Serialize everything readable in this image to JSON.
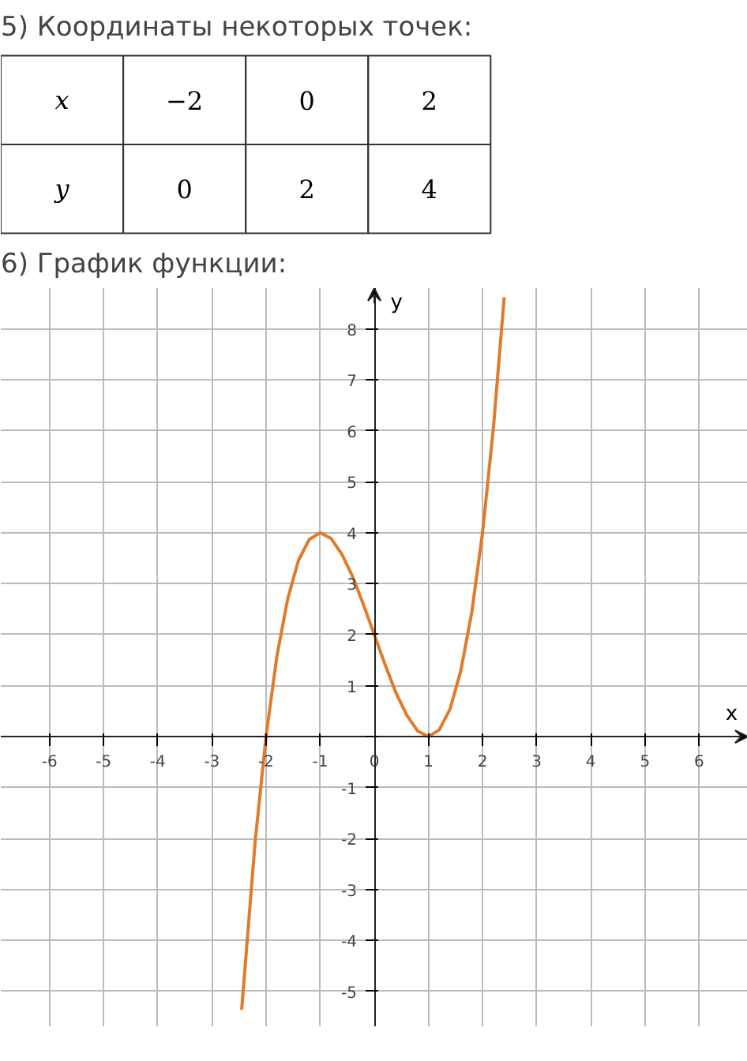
{
  "chart_data": [
    {
      "type": "other",
      "title": "5) Координаты некоторых точек:",
      "annotations": [
        "x",
        "−2",
        "0",
        "2",
        "y",
        "0",
        "2",
        "4"
      ]
    },
    {
      "type": "line",
      "title": "6) График функции:",
      "xlabel": "x",
      "ylabel": "y",
      "xlim": [
        -6.9,
        6.9
      ],
      "ylim": [
        -5.7,
        8.8
      ],
      "xticks": [
        -6,
        -5,
        -4,
        -3,
        -2,
        -1,
        0,
        1,
        2,
        3,
        4,
        5,
        6
      ],
      "yticks": [
        -5,
        -4,
        -3,
        -2,
        -1,
        {
          "value": 0,
          "label": null
        },
        1,
        2,
        3,
        4,
        5,
        6,
        7,
        8
      ],
      "grid": true,
      "marker": "none",
      "line_style": "solid",
      "series": [
        {
          "color": "#e07b2a",
          "x": [
            -2.45,
            -2.2,
            -2.0,
            -1.8,
            -1.6,
            -1.4,
            -1.2,
            -1.0,
            -0.8,
            -0.6,
            -0.4,
            -0.2,
            0,
            0.2,
            0.4,
            0.6,
            0.8,
            1.0,
            1.2,
            1.4,
            1.6,
            1.8,
            2.0,
            2.2,
            2.4
          ],
          "values": [
            -5.36,
            -2.05,
            0,
            1.57,
            2.7,
            3.46,
            3.87,
            4,
            3.89,
            3.58,
            3.14,
            2.59,
            2,
            1.41,
            0.86,
            0.42,
            0.11,
            0,
            0.13,
            0.54,
            1.3,
            2.43,
            4,
            6.05,
            8.62
          ]
        }
      ]
    }
  ]
}
